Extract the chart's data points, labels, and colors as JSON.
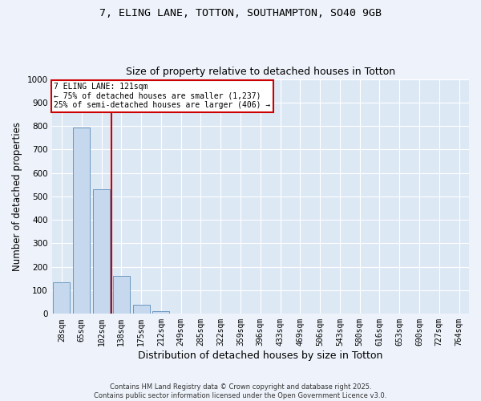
{
  "title": "7, ELING LANE, TOTTON, SOUTHAMPTON, SO40 9GB",
  "subtitle": "Size of property relative to detached houses in Totton",
  "xlabel": "Distribution of detached houses by size in Totton",
  "ylabel": "Number of detached properties",
  "bar_color": "#c5d8ed",
  "bar_edge_color": "#5b8db8",
  "background_color": "#dde8f5",
  "grid_color": "#ffffff",
  "categories": [
    "28sqm",
    "65sqm",
    "102sqm",
    "138sqm",
    "175sqm",
    "212sqm",
    "249sqm",
    "285sqm",
    "322sqm",
    "359sqm",
    "396sqm",
    "433sqm",
    "469sqm",
    "506sqm",
    "543sqm",
    "580sqm",
    "616sqm",
    "653sqm",
    "690sqm",
    "727sqm",
    "764sqm"
  ],
  "values": [
    135,
    795,
    530,
    163,
    38,
    10,
    0,
    0,
    0,
    0,
    0,
    0,
    0,
    0,
    0,
    0,
    0,
    0,
    0,
    0,
    0
  ],
  "annotation_line1": "7 ELING LANE: 121sqm",
  "annotation_line2": "← 75% of detached houses are smaller (1,237)",
  "annotation_line3": "25% of semi-detached houses are larger (406) →",
  "annotation_box_color": "#cc0000",
  "vline_color": "#cc0000",
  "ylim": [
    0,
    1000
  ],
  "yticks": [
    0,
    100,
    200,
    300,
    400,
    500,
    600,
    700,
    800,
    900,
    1000
  ],
  "title_fontsize": 9.5,
  "subtitle_fontsize": 9,
  "tick_fontsize": 7,
  "ylabel_fontsize": 8.5,
  "xlabel_fontsize": 9,
  "footer_line1": "Contains HM Land Registry data © Crown copyright and database right 2025.",
  "footer_line2": "Contains public sector information licensed under the Open Government Licence v3.0.",
  "fig_facecolor": "#eef3fb"
}
